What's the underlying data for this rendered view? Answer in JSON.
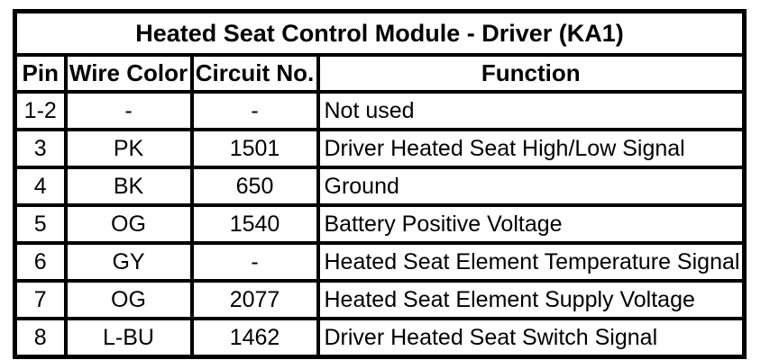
{
  "table": {
    "title": "Heated Seat Control Module - Driver (KA1)",
    "columns": {
      "pin": "Pin",
      "wire_color": "Wire Color",
      "circuit_no": "Circuit No.",
      "function": "Function"
    },
    "rows": [
      {
        "pin": "1-2",
        "wire_color": "-",
        "circuit_no": "-",
        "function": "Not used"
      },
      {
        "pin": "3",
        "wire_color": "PK",
        "circuit_no": "1501",
        "function": "Driver Heated Seat High/Low Signal"
      },
      {
        "pin": "4",
        "wire_color": "BK",
        "circuit_no": "650",
        "function": "Ground"
      },
      {
        "pin": "5",
        "wire_color": "OG",
        "circuit_no": "1540",
        "function": "Battery Positive Voltage"
      },
      {
        "pin": "6",
        "wire_color": "GY",
        "circuit_no": "-",
        "function": "Heated Seat Element Temperature Signal"
      },
      {
        "pin": "7",
        "wire_color": "OG",
        "circuit_no": "2077",
        "function": "Heated Seat Element Supply Voltage"
      },
      {
        "pin": "8",
        "wire_color": "L-BU",
        "circuit_no": "1462",
        "function": "Driver Heated Seat Switch Signal"
      }
    ],
    "colors": {
      "border": "#000000",
      "background": "#ffffff",
      "text": "#000000"
    }
  }
}
